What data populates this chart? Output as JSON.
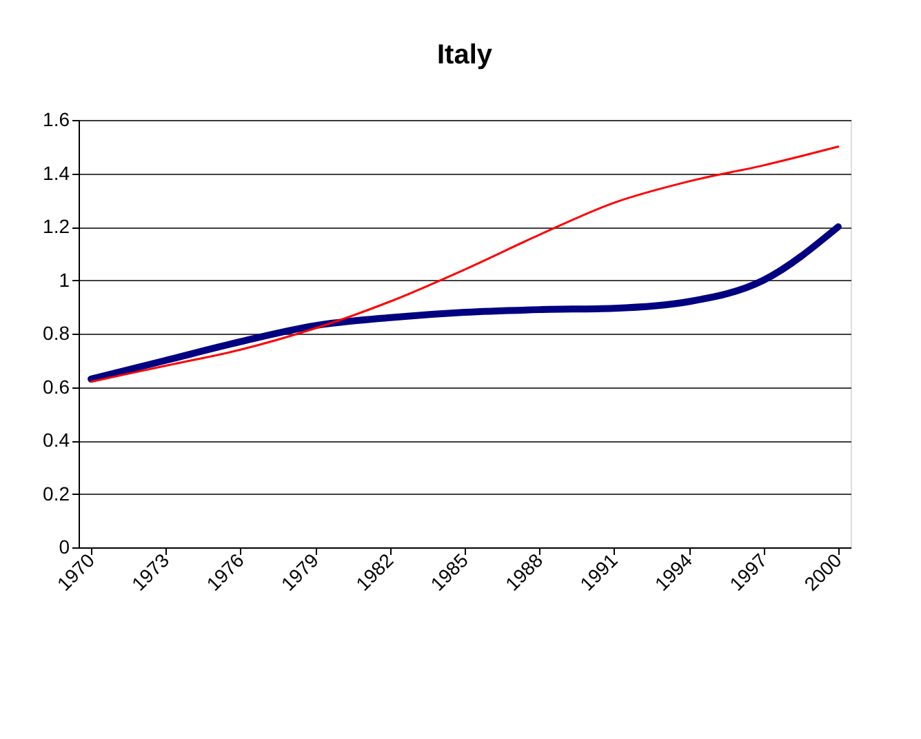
{
  "chart_data": {
    "type": "line",
    "title": "Italy",
    "x": [
      1970,
      1973,
      1976,
      1979,
      1982,
      1985,
      1988,
      1991,
      1994,
      1997,
      2000
    ],
    "series": [
      {
        "color": "#000080",
        "values": [
          0.63,
          0.7,
          0.77,
          0.83,
          0.86,
          0.88,
          0.89,
          0.895,
          0.92,
          1.0,
          1.2
        ]
      },
      {
        "color": "#ff0000",
        "values": [
          0.62,
          0.68,
          0.74,
          0.82,
          0.92,
          1.04,
          1.17,
          1.29,
          1.37,
          1.43,
          1.5
        ]
      }
    ],
    "xlim": [
      1969.5,
      2000.5
    ],
    "xticks": [
      1970,
      1973,
      1976,
      1979,
      1982,
      1985,
      1988,
      1991,
      1994,
      1997,
      2000
    ],
    "ylim": [
      0,
      1.6
    ],
    "yticks": [
      0,
      0.2,
      0.4,
      0.6,
      0.8,
      1,
      1.2,
      1.4,
      1.6
    ],
    "grid": "y",
    "legend": false,
    "marker": "none",
    "line_style": "solid"
  }
}
